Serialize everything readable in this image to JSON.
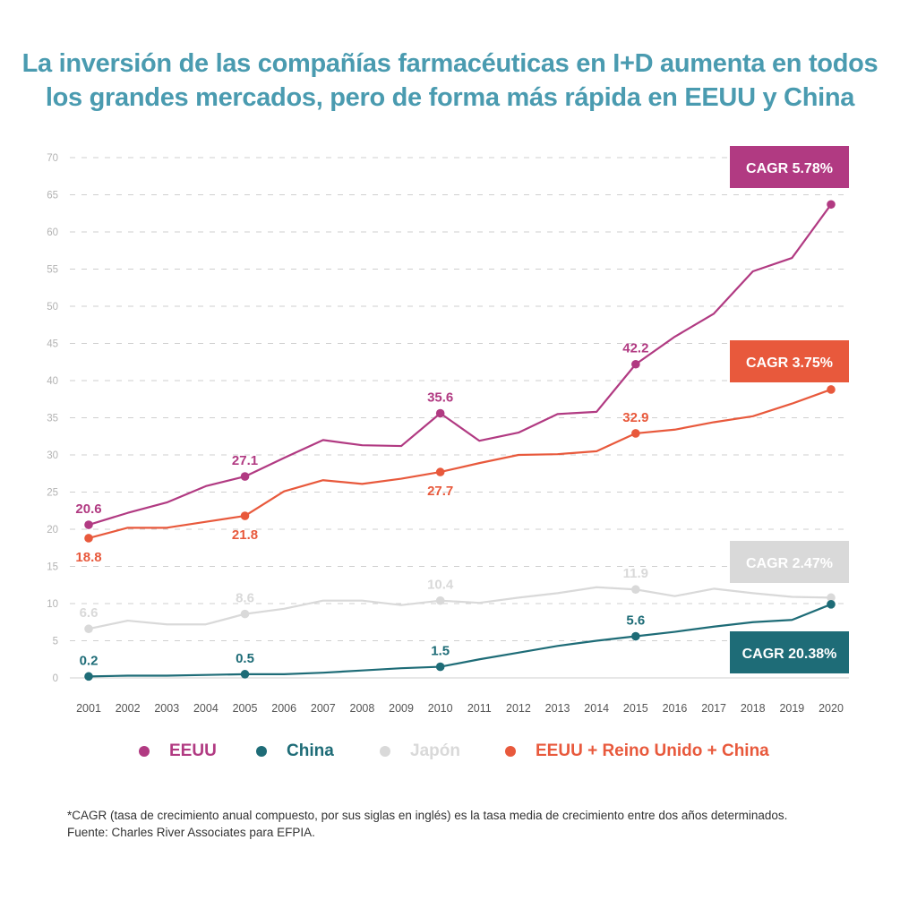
{
  "title": {
    "line1": "La inversión de las compañías farmacéuticas en I+D aumenta en todos",
    "line2": "los grandes mercados, pero de forma más rápida en EEUU y China"
  },
  "chart_data": {
    "type": "line",
    "x": [
      2001,
      2002,
      2003,
      2004,
      2005,
      2006,
      2007,
      2008,
      2009,
      2010,
      2011,
      2012,
      2013,
      2014,
      2015,
      2016,
      2017,
      2018,
      2019,
      2020
    ],
    "ylim": [
      0,
      70
    ],
    "yticks": [
      0,
      5,
      10,
      15,
      20,
      25,
      30,
      35,
      40,
      45,
      50,
      55,
      60,
      65,
      70
    ],
    "grid": true,
    "series": [
      {
        "name": "EEUU",
        "color": "#b13a82",
        "values": [
          20.6,
          22.2,
          23.6,
          25.8,
          27.1,
          29.6,
          32.0,
          31.3,
          31.2,
          35.6,
          31.9,
          33.0,
          35.5,
          35.8,
          42.2,
          45.9,
          49.0,
          54.7,
          56.5,
          63.7
        ],
        "markers": [
          {
            "index": 0,
            "label": "20.6"
          },
          {
            "index": 4,
            "label": "27.1"
          },
          {
            "index": 9,
            "label": "35.6"
          },
          {
            "index": 14,
            "label": "42.2"
          },
          {
            "index": 19,
            "label": ""
          }
        ],
        "cagr": "CAGR 5.78%"
      },
      {
        "name": "EEUU + Reino Unido + China",
        "color": "#e8593c",
        "values": [
          18.8,
          20.2,
          20.2,
          21.0,
          21.8,
          25.1,
          26.6,
          26.1,
          26.8,
          27.7,
          28.9,
          30.0,
          30.1,
          30.5,
          32.9,
          33.4,
          34.4,
          35.2,
          36.9,
          38.8
        ],
        "markers": [
          {
            "index": 0,
            "label": "18.8"
          },
          {
            "index": 4,
            "label": "21.8"
          },
          {
            "index": 9,
            "label": "27.7"
          },
          {
            "index": 14,
            "label": "32.9"
          },
          {
            "index": 19,
            "label": ""
          }
        ],
        "cagr": "CAGR 3.75%"
      },
      {
        "name": "Japón",
        "color": "#d9d9d9",
        "values": [
          6.6,
          7.7,
          7.2,
          7.2,
          8.6,
          9.3,
          10.4,
          10.4,
          9.8,
          10.4,
          10.1,
          10.8,
          11.4,
          12.2,
          11.9,
          11.0,
          12.0,
          11.4,
          10.9,
          10.8
        ],
        "markers": [
          {
            "index": 0,
            "label": "6.6"
          },
          {
            "index": 4,
            "label": "8.6"
          },
          {
            "index": 9,
            "label": "10.4"
          },
          {
            "index": 14,
            "label": "11.9"
          },
          {
            "index": 19,
            "label": ""
          }
        ],
        "cagr": "CAGR 2.47%"
      },
      {
        "name": "China",
        "color": "#1e6c77",
        "values": [
          0.2,
          0.3,
          0.3,
          0.4,
          0.5,
          0.5,
          0.7,
          1.0,
          1.3,
          1.5,
          2.5,
          3.4,
          4.3,
          5.0,
          5.6,
          6.2,
          6.9,
          7.5,
          7.8,
          9.9
        ],
        "markers": [
          {
            "index": 0,
            "label": "0.2"
          },
          {
            "index": 4,
            "label": "0.5"
          },
          {
            "index": 9,
            "label": "1.5"
          },
          {
            "index": 14,
            "label": "5.6"
          },
          {
            "index": 19,
            "label": ""
          }
        ],
        "cagr": "CAGR 20.38%"
      }
    ]
  },
  "legend": [
    {
      "label": "EEUU",
      "color": "#b13a82"
    },
    {
      "label": "China",
      "color": "#1e6c77"
    },
    {
      "label": "Japón",
      "color": "#d9d9d9"
    },
    {
      "label": "EEUU + Reino Unido + China",
      "color": "#e8593c"
    }
  ],
  "footnote": {
    "line1": "*CAGR (tasa de crecimiento anual compuesto, por sus siglas en inglés) es la tasa media de crecimiento entre dos años determinados.",
    "line2": "Fuente: Charles River Associates para EFPIA."
  }
}
